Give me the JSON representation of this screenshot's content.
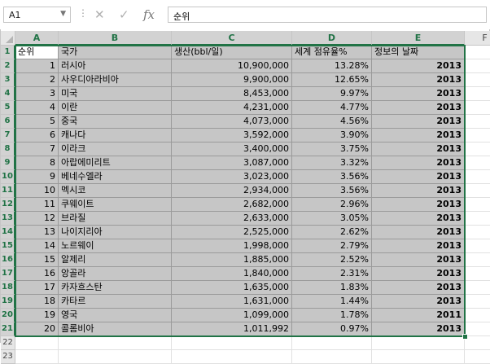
{
  "name_box": {
    "value": "A1"
  },
  "formula_bar": {
    "value": "순위"
  },
  "columns": [
    "A",
    "B",
    "C",
    "D",
    "E",
    "F"
  ],
  "header_row": [
    "순위",
    "국가",
    "생산(bbl/일)",
    "세계 점유율%",
    "정보의 날짜"
  ],
  "rows": [
    [
      "1",
      "러시아",
      "10,900,000",
      "13.28%",
      "2013"
    ],
    [
      "2",
      "사우디아라비아",
      "9,900,000",
      "12.65%",
      "2013"
    ],
    [
      "3",
      "미국",
      "8,453,000",
      "9.97%",
      "2013"
    ],
    [
      "4",
      "이란",
      "4,231,000",
      "4.77%",
      "2013"
    ],
    [
      "5",
      "중국",
      "4,073,000",
      "4.56%",
      "2013"
    ],
    [
      "6",
      "캐나다",
      "3,592,000",
      "3.90%",
      "2013"
    ],
    [
      "7",
      "이라크",
      "3,400,000",
      "3.75%",
      "2013"
    ],
    [
      "8",
      "아랍에미리트",
      "3,087,000",
      "3.32%",
      "2013"
    ],
    [
      "9",
      "베네수엘라",
      "3,023,000",
      "3.56%",
      "2013"
    ],
    [
      "10",
      "멕시코",
      "2,934,000",
      "3.56%",
      "2013"
    ],
    [
      "11",
      "쿠웨이트",
      "2,682,000",
      "2.96%",
      "2013"
    ],
    [
      "12",
      "브라질",
      "2,633,000",
      "3.05%",
      "2013"
    ],
    [
      "13",
      "나이지리아",
      "2,525,000",
      "2.62%",
      "2013"
    ],
    [
      "14",
      "노르웨이",
      "1,998,000",
      "2.79%",
      "2013"
    ],
    [
      "15",
      "알제리",
      "1,885,000",
      "2.52%",
      "2013"
    ],
    [
      "16",
      "앙골라",
      "1,840,000",
      "2.31%",
      "2013"
    ],
    [
      "17",
      "카자흐스탄",
      "1,635,000",
      "1.83%",
      "2013"
    ],
    [
      "18",
      "카타르",
      "1,631,000",
      "1.44%",
      "2013"
    ],
    [
      "19",
      "영국",
      "1,099,000",
      "1.78%",
      "2011"
    ],
    [
      "20",
      "콜롬비아",
      "1,011,992",
      "0.97%",
      "2013"
    ]
  ],
  "row_numbers": [
    "1",
    "2",
    "3",
    "4",
    "5",
    "6",
    "7",
    "8",
    "9",
    "10",
    "11",
    "12",
    "13",
    "14",
    "15",
    "16",
    "17",
    "18",
    "19",
    "20",
    "21",
    "22",
    "23"
  ],
  "icons": {
    "cancel": "cancel-icon",
    "enter": "checkmark-icon",
    "function": "fx-icon"
  },
  "colors": {
    "accent": "#217346",
    "selection_fill": "#c6c6c6"
  }
}
